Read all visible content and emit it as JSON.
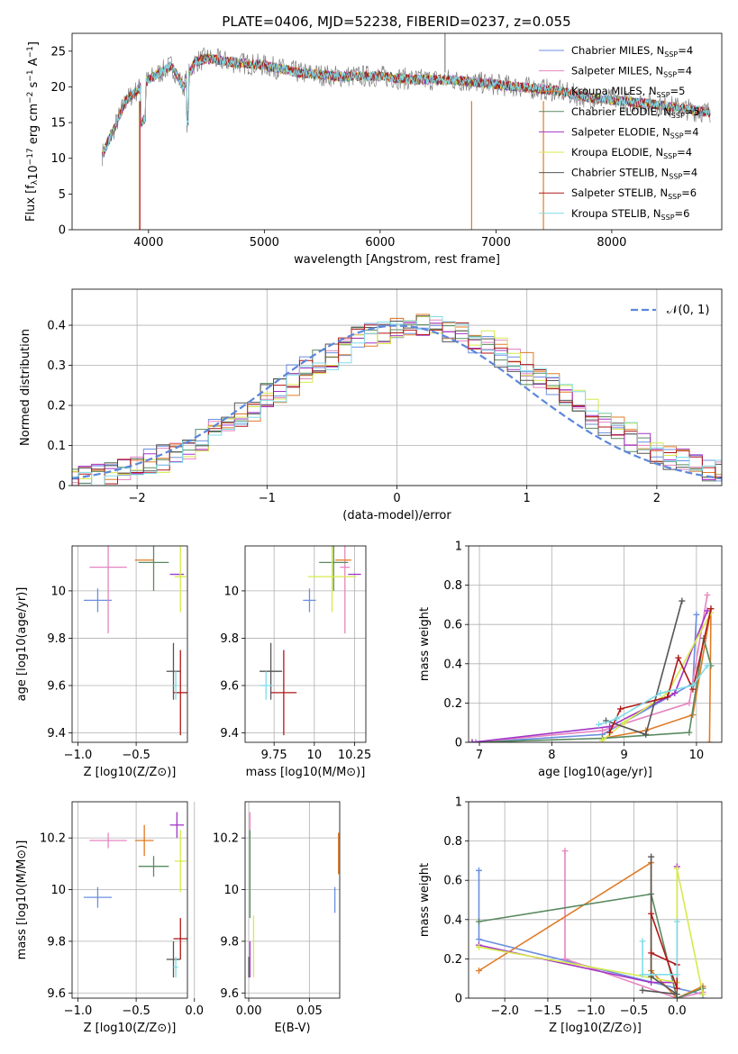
{
  "title": "PLATE=0406, MJD=52238, FIBERID=0237, z=0.055",
  "colors": {
    "chabrier_miles": "#6b8fe0",
    "salpeter_miles": "#e585c0",
    "kroupa_miles": "#e07b25",
    "chabrier_elodie": "#5a8a60",
    "salpeter_elodie": "#a335c7",
    "kroupa_elodie": "#d7ea4b",
    "chabrier_stelib": "#555555",
    "salpeter_stelib": "#b01818",
    "kroupa_stelib": "#7fdce8",
    "data_gray": "#808080"
  },
  "models": [
    "chabrier_miles",
    "salpeter_miles",
    "kroupa_miles",
    "chabrier_elodie",
    "salpeter_elodie",
    "kroupa_elodie",
    "chabrier_stelib",
    "salpeter_stelib",
    "kroupa_stelib"
  ],
  "chart_data": [
    {
      "id": "spectrum",
      "type": "line",
      "title": "PLATE=0406, MJD=52238, FIBERID=0237, z=0.055",
      "xlabel": "wavelength [Angstrom, rest frame]",
      "ylabel": "Flux [f_λ 10^-17 erg cm^-2 s^-1 A^-1]",
      "xlim": [
        3340,
        8950
      ],
      "ylim": [
        0,
        27.5
      ],
      "xticks": [
        4000,
        5000,
        6000,
        7000,
        8000
      ],
      "yticks": [
        0,
        5,
        10,
        15,
        20,
        25
      ],
      "x": [
        3600,
        3700,
        3800,
        3900,
        4000,
        4100,
        4200,
        4300,
        4400,
        4500,
        4700,
        5000,
        5300,
        5600,
        6000,
        6300,
        6600,
        6900,
        7200,
        7500,
        7800,
        8100,
        8400,
        8800
      ],
      "series": [
        {
          "name": "Data",
          "values": [
            10.5,
            14,
            18,
            19.5,
            21,
            22,
            23,
            20,
            23.5,
            24,
            23.5,
            23,
            22,
            21.5,
            21.5,
            21,
            21,
            20.5,
            20,
            19.5,
            18.5,
            18,
            17.5,
            16.5
          ]
        }
      ],
      "legend": {
        "placement": "top-right",
        "entries": [
          {
            "label": "Chabrier MILES, N",
            "sub": "SSP",
            "suffix": "=4"
          },
          {
            "label": "Salpeter MILES, N",
            "sub": "SSP",
            "suffix": "=4"
          },
          {
            "label": "Kroupa MILES, N",
            "sub": "SSP",
            "suffix": "=5"
          },
          {
            "label": "Chabrier ELODIE, N",
            "sub": "SSP",
            "suffix": "=5"
          },
          {
            "label": "Salpeter ELODIE, N",
            "sub": "SSP",
            "suffix": "=4"
          },
          {
            "label": "Kroupa ELODIE, N",
            "sub": "SSP",
            "suffix": "=4"
          },
          {
            "label": "Chabrier STELIB, N",
            "sub": "SSP",
            "suffix": "=4"
          },
          {
            "label": "Salpeter STELIB, N",
            "sub": "SSP",
            "suffix": "=6"
          },
          {
            "label": "Kroupa STELIB, N",
            "sub": "SSP",
            "suffix": "=6"
          }
        ]
      }
    },
    {
      "id": "residuals",
      "type": "histogram",
      "xlabel": "(data-model)/error",
      "ylabel": "Normed distribution",
      "xlim": [
        -2.5,
        2.5
      ],
      "ylim": [
        0,
        0.49
      ],
      "xticks": [
        -2,
        -1,
        0,
        1,
        2
      ],
      "xtick_labels": [
        "−2",
        "−1",
        "0",
        "1",
        "2"
      ],
      "yticks": [
        0,
        0.1,
        0.2,
        0.3,
        0.4
      ],
      "grid": true,
      "legend": {
        "placement": "top-right",
        "entries": [
          "𝒩(0, 1)"
        ]
      },
      "reference_curve": {
        "name": "𝒩(0, 1)",
        "mean": 0,
        "sigma": 1,
        "style": "dashed"
      }
    },
    {
      "id": "age_vs_Z",
      "type": "errorbar",
      "xlabel": "Z [log10(Z/Z⊙)]",
      "ylabel": "age  [log10(age/yr)]",
      "xlim": [
        -1.05,
        -0.06
      ],
      "ylim": [
        9.36,
        10.19
      ],
      "xticks": [
        -1.0,
        -0.5
      ],
      "xtick_labels": [
        "−1.0",
        "−0.5"
      ],
      "yticks": [
        9.4,
        9.6,
        9.8,
        10.0
      ],
      "points": [
        {
          "x": -0.83,
          "y": 9.96,
          "xerr": 0.12,
          "yerr": 0.05
        },
        {
          "x": -0.74,
          "y": 10.1,
          "xerr": 0.16,
          "yerr": 0.28
        },
        {
          "x": -0.43,
          "y": 10.13,
          "xerr": 0.08,
          "yerr": 0.0
        },
        {
          "x": -0.35,
          "y": 10.12,
          "xerr": 0.13,
          "yerr": 0.12
        },
        {
          "x": -0.15,
          "y": 10.07,
          "xerr": 0.06,
          "yerr": 0.0
        },
        {
          "x": -0.12,
          "y": 10.06,
          "xerr": 0.05,
          "yerr": 0.15
        },
        {
          "x": -0.18,
          "y": 9.66,
          "xerr": 0.06,
          "yerr": 0.12
        },
        {
          "x": -0.12,
          "y": 9.57,
          "xerr": 0.06,
          "yerr": 0.18
        },
        {
          "x": -0.16,
          "y": 9.6,
          "xerr": 0.02,
          "yerr": 0.06
        }
      ]
    },
    {
      "id": "age_vs_mass",
      "type": "errorbar",
      "xlabel": "mass [log10(M/M⊙)]",
      "xlim": [
        9.57,
        10.32
      ],
      "ylim": [
        9.36,
        10.19
      ],
      "xticks": [
        9.75,
        10.0,
        10.25
      ],
      "yticks": [
        9.4,
        9.6,
        9.8,
        10.0
      ],
      "points": [
        {
          "x": 9.97,
          "y": 9.96,
          "xerr": 0.04,
          "yerr": 0.05
        },
        {
          "x": 10.19,
          "y": 10.1,
          "xerr": 0.03,
          "yerr": 0.28
        },
        {
          "x": 10.18,
          "y": 10.13,
          "xerr": 0.05,
          "yerr": 0.0
        },
        {
          "x": 10.12,
          "y": 10.12,
          "xerr": 0.09,
          "yerr": 0.12
        },
        {
          "x": 10.25,
          "y": 10.07,
          "xerr": 0.04,
          "yerr": 0.0
        },
        {
          "x": 10.11,
          "y": 10.06,
          "xerr": 0.15,
          "yerr": 0.15
        },
        {
          "x": 9.73,
          "y": 9.66,
          "xerr": 0.07,
          "yerr": 0.12
        },
        {
          "x": 9.81,
          "y": 9.57,
          "xerr": 0.08,
          "yerr": 0.18
        },
        {
          "x": 9.7,
          "y": 9.6,
          "xerr": 0.04,
          "yerr": 0.06
        }
      ]
    },
    {
      "id": "massweight_vs_age",
      "type": "line",
      "xlabel": "age  [log10(age/yr)]",
      "ylabel": "mass weight",
      "xlim": [
        6.85,
        10.35
      ],
      "ylim": [
        0,
        1.0
      ],
      "xticks": [
        7,
        8,
        9,
        10
      ],
      "yticks": [
        0.0,
        0.2,
        0.4,
        0.6,
        0.8,
        1.0
      ],
      "series": [
        {
          "x": [
            6.95,
            8.7,
            9.95,
            10.0
          ],
          "y": [
            0.0,
            0.04,
            0.3,
            0.65
          ]
        },
        {
          "x": [
            6.9,
            8.7,
            9.9,
            10.15
          ],
          "y": [
            0.0,
            0.06,
            0.2,
            0.75
          ]
        },
        {
          "x": [
            8.7,
            9.3,
            9.95,
            10.2,
            10.18
          ],
          "y": [
            0.02,
            0.06,
            0.14,
            0.68,
            0.0
          ]
        },
        {
          "x": [
            6.9,
            8.7,
            9.9,
            10.1,
            10.2
          ],
          "y": [
            0.0,
            0.02,
            0.05,
            0.53,
            0.39
          ]
        },
        {
          "x": [
            6.9,
            8.8,
            9.7,
            10.15
          ],
          "y": [
            0.0,
            0.08,
            0.25,
            0.67
          ]
        },
        {
          "x": [
            8.7,
            9.0,
            9.6,
            10.2
          ],
          "y": [
            0.01,
            0.1,
            0.25,
            0.66
          ]
        },
        {
          "x": [
            8.75,
            9.3,
            9.8
          ],
          "y": [
            0.11,
            0.04,
            0.72
          ]
        },
        {
          "x": [
            8.8,
            8.95,
            9.6,
            9.75,
            9.95,
            10.2
          ],
          "y": [
            0.05,
            0.17,
            0.23,
            0.43,
            0.27,
            0.68
          ]
        },
        {
          "x": [
            8.65,
            8.9,
            9.5,
            9.95,
            10.15
          ],
          "y": [
            0.09,
            0.12,
            0.25,
            0.29,
            0.39
          ]
        }
      ]
    },
    {
      "id": "mass_vs_Z",
      "type": "errorbar",
      "xlabel": "Z [log10(Z/Z⊙)]",
      "ylabel": "mass [log10(M/M⊙)]",
      "xlim": [
        -1.05,
        -0.06
      ],
      "ylim": [
        9.58,
        10.34
      ],
      "xticks": [
        -1.0,
        -0.5,
        0.0
      ],
      "xtick_labels": [
        "−1.0",
        "−0.5",
        "0.0"
      ],
      "yticks": [
        9.6,
        9.8,
        10.0,
        10.2
      ],
      "points": [
        {
          "x": -0.83,
          "y": 9.97,
          "xerr": 0.12,
          "yerr": 0.04
        },
        {
          "x": -0.74,
          "y": 10.19,
          "xerr": 0.16,
          "yerr": 0.03
        },
        {
          "x": -0.43,
          "y": 10.19,
          "xerr": 0.08,
          "yerr": 0.06
        },
        {
          "x": -0.35,
          "y": 10.09,
          "xerr": 0.13,
          "yerr": 0.04
        },
        {
          "x": -0.15,
          "y": 10.25,
          "xerr": 0.06,
          "yerr": 0.05
        },
        {
          "x": -0.12,
          "y": 10.11,
          "xerr": 0.05,
          "yerr": 0.12
        },
        {
          "x": -0.18,
          "y": 9.73,
          "xerr": 0.06,
          "yerr": 0.07
        },
        {
          "x": -0.12,
          "y": 9.81,
          "xerr": 0.06,
          "yerr": 0.08
        },
        {
          "x": -0.16,
          "y": 9.7,
          "xerr": 0.02,
          "yerr": 0.04
        }
      ]
    },
    {
      "id": "mass_vs_ebv",
      "type": "errorbar",
      "xlabel": "E(B-V)",
      "xlim": [
        -0.003,
        0.075
      ],
      "ylim": [
        9.58,
        10.34
      ],
      "xticks": [
        0.0,
        0.05
      ],
      "xtick_labels": [
        "0.00",
        "0.05"
      ],
      "yticks": [
        9.6,
        9.8,
        10.0,
        10.2
      ],
      "points": [
        {
          "x": 0.071,
          "y": 9.96,
          "xerr": 0,
          "yerr": 0.05
        },
        {
          "x": 0.001,
          "y": 10.25,
          "xerr": 0,
          "yerr": 0.05
        },
        {
          "x": 0.074,
          "y": 10.14,
          "xerr": 0,
          "yerr": 0.08
        },
        {
          "x": 0.001,
          "y": 10.06,
          "xerr": 0,
          "yerr": 0.17
        },
        {
          "x": 0.001,
          "y": 9.73,
          "xerr": 0,
          "yerr": 0.07
        },
        {
          "x": 0.004,
          "y": 9.78,
          "xerr": 0,
          "yerr": 0.12
        },
        {
          "x": 0.0,
          "y": 9.7,
          "xerr": 0,
          "yerr": 0.04
        }
      ]
    },
    {
      "id": "massweight_vs_Z",
      "type": "line",
      "xlabel": "Z [log10(Z/Z⊙)]",
      "ylabel": "mass weight",
      "xlim": [
        -2.42,
        0.52
      ],
      "ylim": [
        0,
        1.0
      ],
      "xticks": [
        -2.0,
        -1.5,
        -1.0,
        -0.5,
        0.0
      ],
      "xtick_labels": [
        "−2.0",
        "−1.5",
        "−1.0",
        "−0.5",
        "0.0"
      ],
      "yticks": [
        0.0,
        0.2,
        0.4,
        0.6,
        0.8,
        1.0
      ],
      "series": [
        {
          "x": [
            -2.3,
            -2.3,
            0.0,
            0.3,
            0.3
          ],
          "y": [
            0.65,
            0.3,
            0.05,
            0.02,
            0.0
          ]
        },
        {
          "x": [
            -1.3,
            -1.3,
            0.0,
            0.3
          ],
          "y": [
            0.75,
            0.2,
            0.0,
            0.03
          ]
        },
        {
          "x": [
            -2.3,
            -0.3,
            -0.3,
            0.0,
            0.3
          ],
          "y": [
            0.14,
            0.69,
            0.14,
            0.0,
            0.06
          ]
        },
        {
          "x": [
            -2.3,
            -0.3,
            0.0,
            0.3
          ],
          "y": [
            0.39,
            0.53,
            0.0,
            0.05
          ]
        },
        {
          "x": [
            -2.3,
            -0.3,
            0.0,
            0.0
          ],
          "y": [
            0.27,
            0.08,
            0.08,
            0.67
          ]
        },
        {
          "x": [
            -2.3,
            0.0,
            0.0,
            0.3
          ],
          "y": [
            0.26,
            0.08,
            0.66,
            0.02
          ]
        },
        {
          "x": [
            -0.3,
            -0.3,
            0.0,
            -0.4
          ],
          "y": [
            0.72,
            0.11,
            0.02,
            0.04
          ]
        },
        {
          "x": [
            -0.3,
            0.0,
            0.0,
            -0.3
          ],
          "y": [
            0.23,
            0.17,
            0.05,
            0.43
          ]
        },
        {
          "x": [
            -0.4,
            -0.4,
            0.0,
            0.0
          ],
          "y": [
            0.29,
            0.12,
            0.12,
            0.39
          ]
        }
      ]
    }
  ]
}
